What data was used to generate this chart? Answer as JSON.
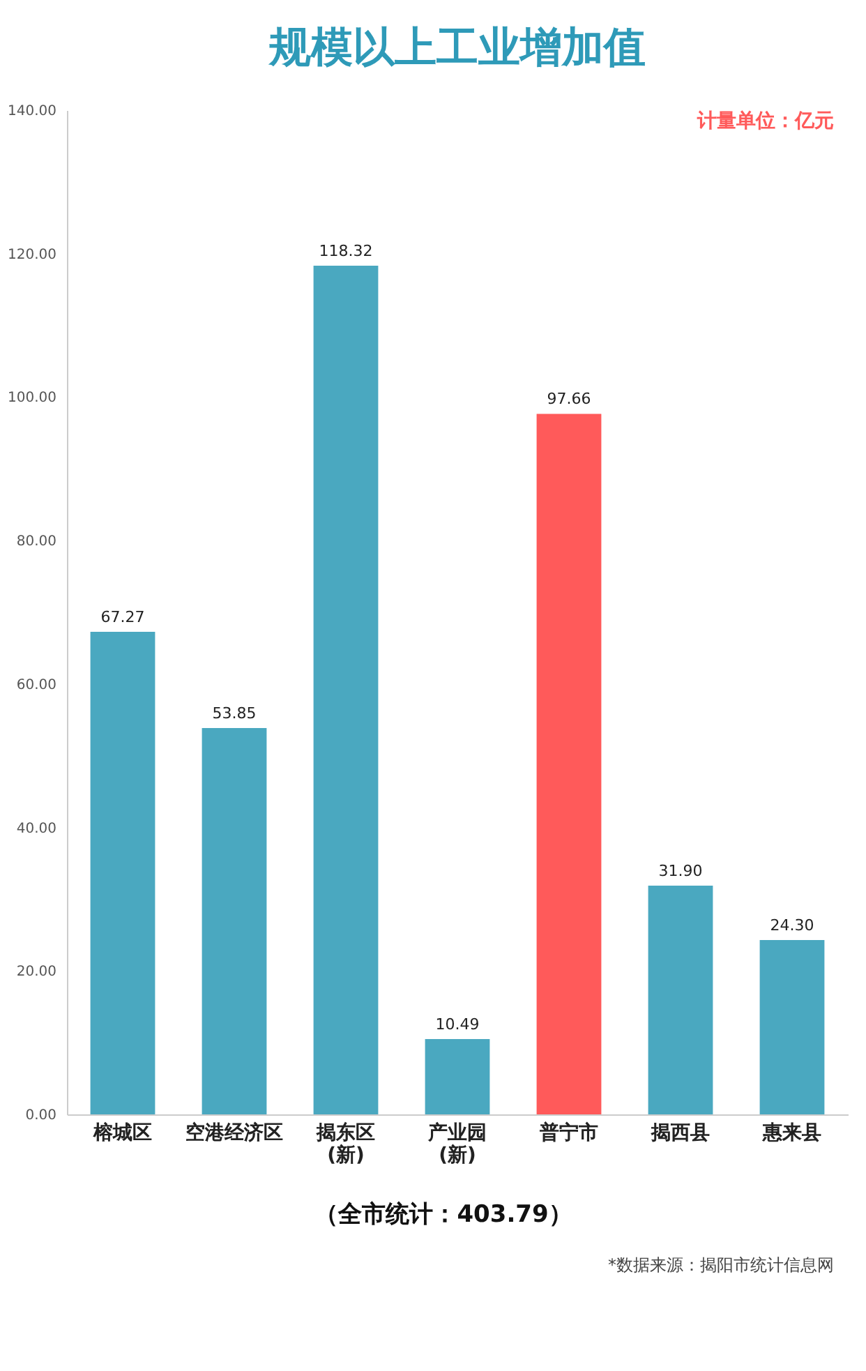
{
  "chart_data": {
    "type": "bar",
    "title": "规模以上工业增加值",
    "categories": [
      "榕城区",
      "空港经济区",
      "揭东区\n(新)",
      "产业园\n(新)",
      "普宁市",
      "揭西县",
      "惠来县"
    ],
    "values": [
      67.27,
      53.85,
      118.32,
      10.49,
      97.66,
      31.9,
      24.3
    ],
    "colors": [
      "#4aa8c0",
      "#4aa8c0",
      "#4aa8c0",
      "#4aa8c0",
      "#ff5a5a",
      "#4aa8c0",
      "#4aa8c0"
    ],
    "value_labels": [
      "67.27",
      "53.85",
      "118.32",
      "10.49",
      "97.66",
      "31.90",
      "24.30"
    ],
    "ylim": [
      0,
      140
    ],
    "yticks": [
      {
        "value": 0,
        "label": "0.00"
      },
      {
        "value": 20,
        "label": "20.00"
      },
      {
        "value": 40,
        "label": "40.00"
      },
      {
        "value": 60,
        "label": "60.00"
      },
      {
        "value": 80,
        "label": "80.00"
      },
      {
        "value": 100,
        "label": "100.00"
      },
      {
        "value": 120,
        "label": "120.00"
      },
      {
        "value": 140,
        "label": "140.00"
      }
    ],
    "grid": false,
    "annotations": [
      "计量单位：亿元",
      "（全市统计：403.79）",
      "*数据来源：揭阳市统计信息网"
    ]
  }
}
